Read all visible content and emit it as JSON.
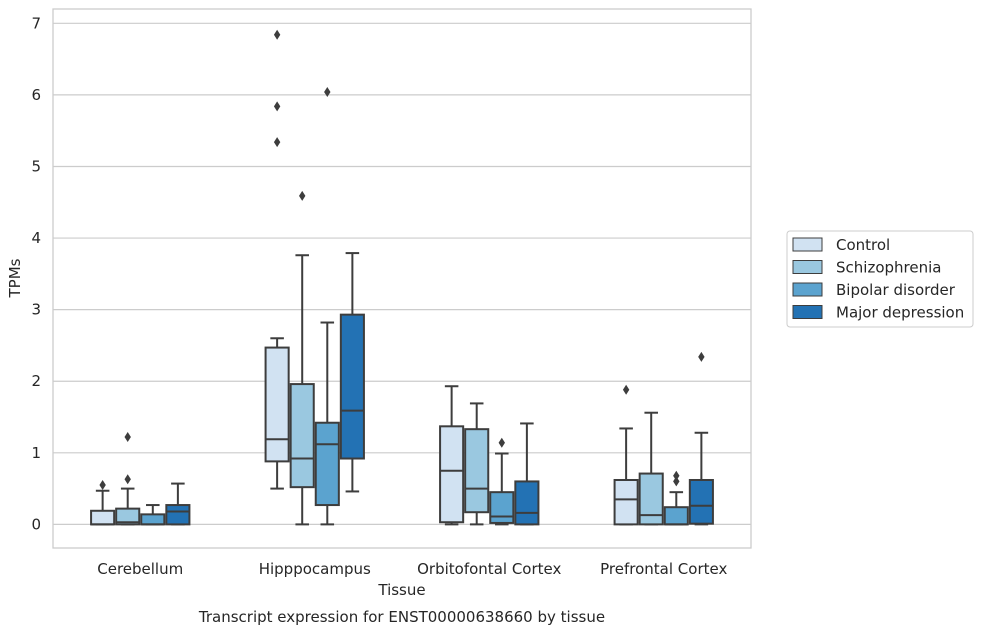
{
  "caption": "Transcript expression for ENST00000638660 by tissue",
  "chart_data": {
    "type": "box",
    "xlabel": "Tissue",
    "ylabel": "TPMs",
    "ylim": [
      -0.33,
      7.2
    ],
    "yticks": [
      0,
      1,
      2,
      3,
      4,
      5,
      6,
      7
    ],
    "grid": true,
    "legend_position": "right",
    "categories": [
      "Cerebellum",
      "Hipppocampus",
      "Orbitofontal Cortex",
      "Prefrontal Cortex"
    ],
    "series": [
      {
        "name": "Control",
        "color": "#d1e2f2",
        "boxes": [
          {
            "whislo": 0,
            "q1": 0,
            "med": 0,
            "q3": 0.19,
            "whishi": 0.47,
            "fliers": [
              0.55
            ]
          },
          {
            "whislo": 0.5,
            "q1": 0.88,
            "med": 1.19,
            "q3": 2.47,
            "whishi": 2.6,
            "fliers": [
              5.34,
              5.84,
              6.84
            ]
          },
          {
            "whislo": 0,
            "q1": 0.03,
            "med": 0.75,
            "q3": 1.37,
            "whishi": 1.93,
            "fliers": []
          },
          {
            "whislo": 0,
            "q1": 0,
            "med": 0.35,
            "q3": 0.62,
            "whishi": 1.34,
            "fliers": [
              1.88
            ]
          }
        ]
      },
      {
        "name": "Schizophrenia",
        "color": "#9ac8e0",
        "boxes": [
          {
            "whislo": 0,
            "q1": 0,
            "med": 0.03,
            "q3": 0.22,
            "whishi": 0.5,
            "fliers": [
              0.63,
              1.22
            ]
          },
          {
            "whislo": 0,
            "q1": 0.52,
            "med": 0.92,
            "q3": 1.96,
            "whishi": 3.76,
            "fliers": [
              4.59
            ]
          },
          {
            "whislo": 0,
            "q1": 0.17,
            "med": 0.5,
            "q3": 1.33,
            "whishi": 1.69,
            "fliers": []
          },
          {
            "whislo": 0,
            "q1": 0,
            "med": 0.13,
            "q3": 0.71,
            "whishi": 1.56,
            "fliers": []
          }
        ]
      },
      {
        "name": "Bipolar disorder",
        "color": "#5ba3cf",
        "boxes": [
          {
            "whislo": 0,
            "q1": 0,
            "med": 0,
            "q3": 0.14,
            "whishi": 0.27,
            "fliers": []
          },
          {
            "whislo": 0,
            "q1": 0.27,
            "med": 1.12,
            "q3": 1.42,
            "whishi": 2.82,
            "fliers": [
              6.04
            ]
          },
          {
            "whislo": 0,
            "q1": 0.02,
            "med": 0.11,
            "q3": 0.45,
            "whishi": 0.99,
            "fliers": [
              1.14
            ]
          },
          {
            "whislo": 0,
            "q1": 0,
            "med": 0,
            "q3": 0.24,
            "whishi": 0.45,
            "fliers": [
              0.6,
              0.68
            ]
          }
        ]
      },
      {
        "name": "Major depression",
        "color": "#2372b4",
        "boxes": [
          {
            "whislo": 0,
            "q1": 0,
            "med": 0.18,
            "q3": 0.27,
            "whishi": 0.57,
            "fliers": []
          },
          {
            "whislo": 0.46,
            "q1": 0.92,
            "med": 1.59,
            "q3": 2.93,
            "whishi": 3.79,
            "fliers": []
          },
          {
            "whislo": 0,
            "q1": 0,
            "med": 0.16,
            "q3": 0.6,
            "whishi": 1.41,
            "fliers": []
          },
          {
            "whislo": 0,
            "q1": 0.01,
            "med": 0.26,
            "q3": 0.62,
            "whishi": 1.28,
            "fliers": [
              2.34
            ]
          }
        ]
      }
    ]
  }
}
